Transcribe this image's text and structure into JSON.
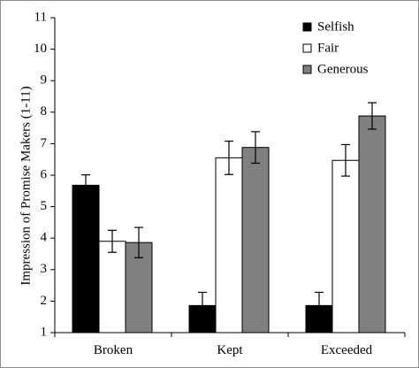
{
  "chart_data": {
    "type": "bar",
    "title": "",
    "xlabel": "",
    "ylabel": "Impression of Promise Makers (1-11)",
    "ylim": [
      1,
      11
    ],
    "yticks": [
      1,
      2,
      3,
      4,
      5,
      6,
      7,
      8,
      9,
      10,
      11
    ],
    "grid": false,
    "legend_position": "top-right",
    "categories": [
      "Broken",
      "Kept",
      "Exceeded"
    ],
    "series": [
      {
        "name": "Selfish",
        "color": "#000000",
        "fill_style": "solid-black",
        "values": [
          5.68,
          1.86,
          1.86
        ],
        "error": [
          0.33,
          0.42,
          0.42
        ]
      },
      {
        "name": "Fair",
        "color": "#ffffff",
        "fill_style": "white-outlined",
        "values": [
          3.9,
          6.55,
          6.47
        ],
        "error": [
          0.35,
          0.53,
          0.5
        ]
      },
      {
        "name": "Generous",
        "color": "#808080",
        "fill_style": "gray",
        "values": [
          3.86,
          6.88,
          7.88
        ],
        "error": [
          0.48,
          0.5,
          0.42
        ]
      }
    ]
  }
}
